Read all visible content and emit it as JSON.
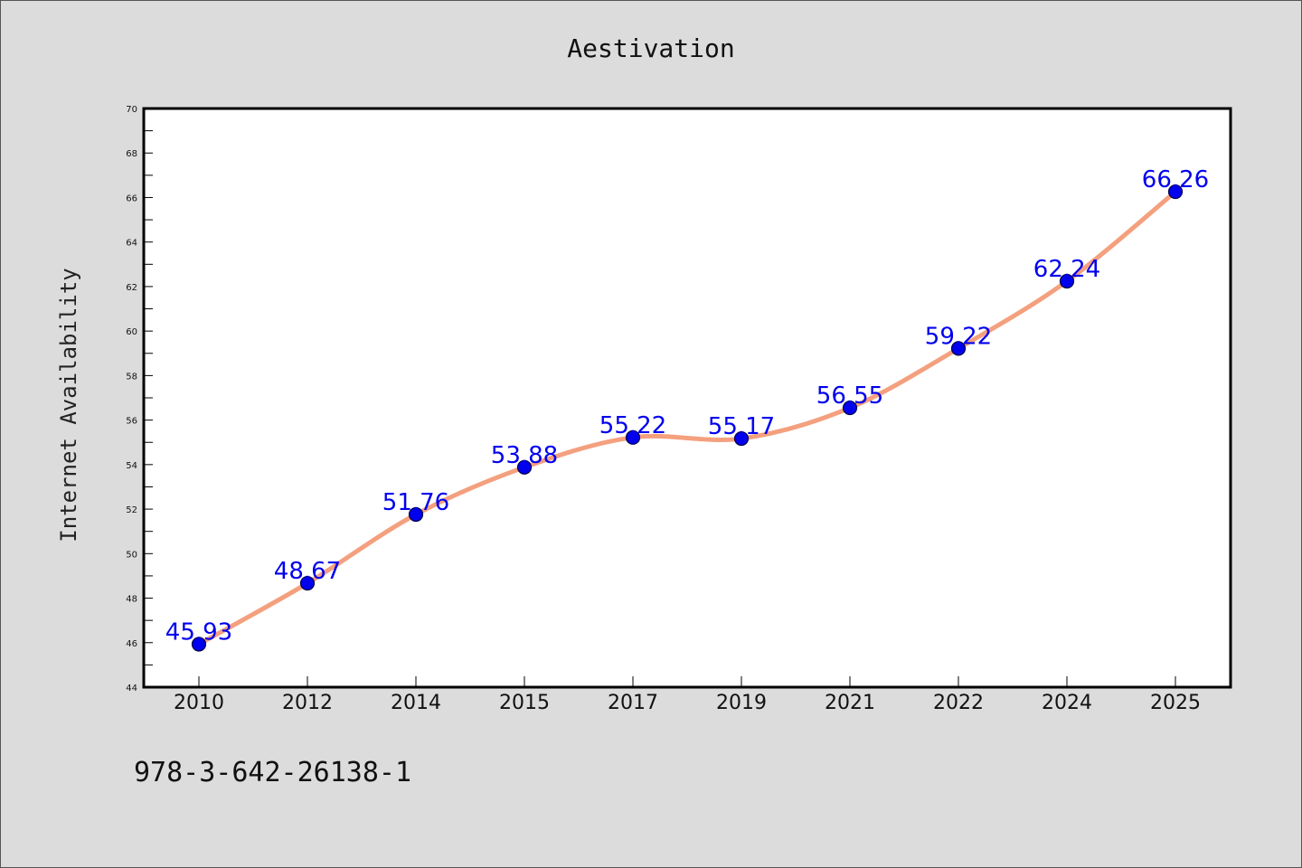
{
  "chart_data": {
    "type": "line",
    "title": "Aestivation",
    "xlabel": "",
    "ylabel": "Internet Availability",
    "categories": [
      "2010",
      "2012",
      "2014",
      "2015",
      "2017",
      "2019",
      "2021",
      "2022",
      "2024",
      "2025"
    ],
    "series": [
      {
        "values": [
          45.93,
          48.67,
          51.76,
          53.88,
          55.22,
          55.17,
          56.55,
          59.22,
          62.24,
          66.26
        ]
      }
    ],
    "ylim": [
      44,
      70
    ],
    "y_ticks": [
      44,
      46,
      48,
      50,
      52,
      54,
      56,
      58,
      60,
      62,
      64,
      66,
      68,
      70
    ],
    "data_labels": [
      "45.93",
      "48.67",
      "51.76",
      "53.88",
      "55.22",
      "55.17",
      "56.55",
      "59.22",
      "62.24",
      "66.26"
    ],
    "grid": false,
    "legend": "none",
    "colors": {
      "line": "#f4a07e",
      "marker": "#0000ee",
      "data_label": "#0000ee",
      "plot_background": "#ffffff",
      "figure_background": "#dcdcdc"
    }
  },
  "footer": {
    "isbn": "978-3-642-26138-1"
  }
}
